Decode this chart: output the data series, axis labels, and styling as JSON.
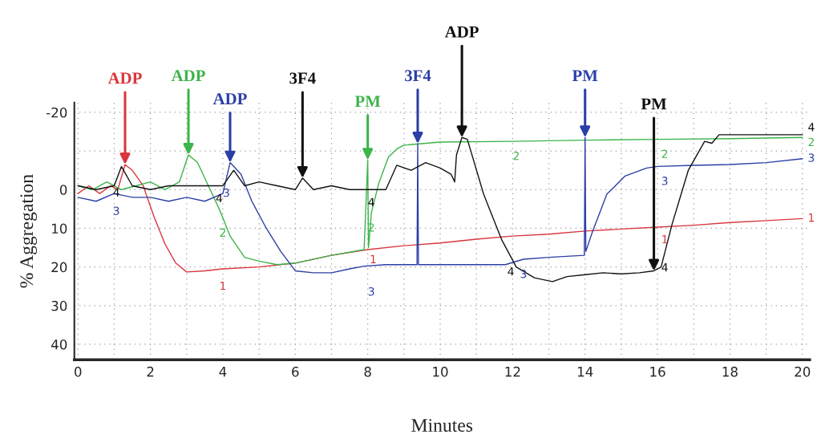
{
  "chart_data": {
    "type": "line",
    "xlabel": "Minutes",
    "ylabel": "% Aggregation",
    "xlim": [
      -0.1,
      20.2
    ],
    "ylim": [
      44,
      -22.5
    ],
    "xticks": [
      0,
      {
        "value": 1,
        "label": null
      },
      2,
      {
        "value": 3,
        "label": null
      },
      4,
      {
        "value": 5,
        "label": null
      },
      6,
      {
        "value": 7,
        "label": null
      },
      8,
      {
        "value": 9,
        "label": null
      },
      10,
      {
        "value": 11,
        "label": null
      },
      12,
      {
        "value": 13,
        "label": null
      },
      14,
      {
        "value": 15,
        "label": null
      },
      16,
      {
        "value": 17,
        "label": null
      },
      18,
      {
        "value": 19,
        "label": null
      },
      20
    ],
    "yticks": [
      -20,
      {
        "value": -10,
        "label": null
      },
      0,
      10,
      20,
      30,
      40
    ],
    "grid": true,
    "line_style": "solid",
    "marker": "none",
    "series": [
      {
        "name": "1",
        "color": "#d9363e",
        "x": [
          0,
          0.3,
          0.6,
          0.9,
          1.1,
          1.3,
          1.5,
          1.8,
          2.1,
          2.4,
          2.7,
          3.0,
          3.5,
          4.0,
          5.0,
          6.0,
          7.0,
          8.0,
          9.0,
          10.0,
          11.0,
          12.0,
          13.0,
          14.0,
          15.0,
          16.0,
          17.0,
          18.0,
          19.0,
          20.0
        ],
        "values": [
          1,
          -1,
          1,
          -1,
          0,
          -6.5,
          -5,
          -1,
          7,
          14,
          19,
          21.3,
          21,
          20.5,
          20,
          19,
          17,
          15.5,
          14.5,
          13.8,
          12.8,
          12,
          11.5,
          10.7,
          10.2,
          9.7,
          9.2,
          8.5,
          8,
          7.5
        ]
      },
      {
        "name": "2",
        "color": "#3cb44b",
        "x": [
          0,
          0.4,
          0.8,
          1.2,
          1.6,
          2.0,
          2.4,
          2.8,
          3.05,
          3.3,
          3.6,
          3.9,
          4.2,
          4.6,
          5.0,
          5.5,
          6.0,
          7.0,
          7.9,
          8.0,
          8.02,
          8.05,
          8.1,
          8.3,
          8.57,
          8.8,
          9.0,
          10,
          12,
          14,
          16,
          18,
          20
        ],
        "values": [
          -1,
          0,
          -2,
          0,
          -1,
          -2,
          0,
          -2,
          -9,
          -7,
          -1,
          5,
          12,
          17.5,
          18.5,
          19.4,
          19,
          17,
          15.5,
          -7.7,
          15,
          12,
          6,
          -1.5,
          -8.4,
          -10.5,
          -11.5,
          -12.3,
          -12.5,
          -12.8,
          -13,
          -13.2,
          -13.5
        ]
      },
      {
        "name": "3",
        "color": "#2b3fa6",
        "x": [
          0,
          0.5,
          1,
          1.5,
          2,
          2.5,
          3,
          3.5,
          4.0,
          4.2,
          4.5,
          4.8,
          5.2,
          5.6,
          6.0,
          6.5,
          7.0,
          7.5,
          7.9,
          8.5,
          9.0,
          9.36,
          9.38,
          9.4,
          10,
          11,
          11.8,
          12.3,
          13,
          13.98,
          14.0,
          14.02,
          14.2,
          14.6,
          15.1,
          15.7,
          16,
          17,
          18,
          19,
          20
        ],
        "values": [
          2,
          3,
          1,
          2,
          2,
          3,
          2,
          3,
          1,
          -7,
          -4,
          3,
          10,
          16,
          21,
          21.5,
          21.5,
          20.5,
          19.8,
          19.4,
          19.4,
          19.4,
          -11.9,
          19.4,
          19.4,
          19.4,
          19.4,
          18,
          17.5,
          17,
          -13.5,
          16,
          11,
          1.2,
          -3.5,
          -5.6,
          -6,
          -6.3,
          -6.5,
          -7,
          -8
        ]
      },
      {
        "name": "4",
        "color": "#111111",
        "x": [
          0,
          0.5,
          1,
          1.2,
          1.5,
          2,
          2.5,
          3,
          3.5,
          4,
          4.3,
          4.6,
          5,
          5.5,
          6,
          6.2,
          6.5,
          7,
          7.5,
          8,
          8.5,
          8.8,
          9.2,
          9.6,
          10,
          10.3,
          10.4,
          10.45,
          10.6,
          10.75,
          11.2,
          11.7,
          12.1,
          12.6,
          13.1,
          13.5,
          14,
          14.5,
          15,
          15.5,
          15.9,
          16.1,
          16.4,
          16.85,
          17.3,
          17.5,
          17.7,
          18,
          19,
          20
        ],
        "values": [
          -1,
          0,
          -1,
          -6,
          -1,
          0,
          -1,
          -1,
          -1,
          -1,
          -5,
          -1,
          -2,
          -1,
          0,
          -3,
          0,
          -1,
          0,
          0,
          0,
          -6.3,
          -5,
          -7,
          -5.6,
          -4,
          -2,
          -9,
          -13.5,
          -13,
          1.2,
          13,
          20,
          22.8,
          23.8,
          22.5,
          22,
          21.5,
          21.8,
          21.5,
          21,
          20,
          9,
          -5,
          -12.5,
          -12,
          -14.2,
          -14.2,
          -14.2,
          -14.2
        ]
      }
    ],
    "annotations": [
      {
        "text": "ADP",
        "x": 1.3,
        "y": -6.5
      },
      {
        "text": "ADP",
        "x": 3.05,
        "y": -9
      },
      {
        "text": "ADP",
        "x": 4.2,
        "y": -7
      },
      {
        "text": "3F4",
        "x": 6.2,
        "y": -3
      },
      {
        "text": "PM",
        "x": 8.0,
        "y": -7.7
      },
      {
        "text": "3F4",
        "x": 9.38,
        "y": -11.9
      },
      {
        "text": "ADP",
        "x": 10.6,
        "y": -13.5
      },
      {
        "text": "PM",
        "x": 14.0,
        "y": -13.5
      },
      {
        "text": "PM",
        "x": 15.9,
        "y": 21
      }
    ]
  }
}
